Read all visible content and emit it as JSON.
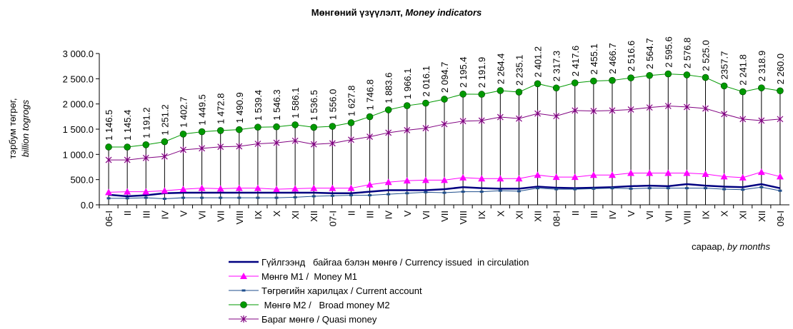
{
  "chart_data": {
    "type": "line",
    "title": "Мөнгөний үзүүлэлт,",
    "title_en": "Money indicators",
    "y_label": "тэрбум төгрөг,",
    "y_label_en": "billion togrogs",
    "x_label": "сараар,",
    "x_label_en": "by months",
    "categories": [
      "06-I",
      "II",
      "III",
      "IV",
      "V",
      "VI",
      "VII",
      "VIII",
      "IX",
      "X",
      "XI",
      "XII",
      "07-I",
      "II",
      "III",
      "IV",
      "V",
      "VI",
      "VII",
      "VIII",
      "IX",
      "X",
      "XI",
      "XII",
      "08-I",
      "II",
      "III",
      "IV",
      "V",
      "VI",
      "VII",
      "VIII",
      "IX",
      "X",
      "XI",
      "XII",
      "09-I"
    ],
    "ylim": [
      0,
      3000
    ],
    "yticks": [
      {
        "value": 0,
        "label": "0.0"
      },
      {
        "value": 500,
        "label": "500.0"
      },
      {
        "value": 1000,
        "label": "1 000.0"
      },
      {
        "value": 1500,
        "label": "1 500.0"
      },
      {
        "value": 2000,
        "label": "2 000.0"
      },
      {
        "value": 2500,
        "label": "2 500.0"
      },
      {
        "value": 3000,
        "label": "3 000.0"
      }
    ],
    "drop_lines": true,
    "series": [
      {
        "name": "Гүйлгээнд   байгаа бэлэн мөнгө / Currency issued  in circulation",
        "color": "#000080",
        "marker": "none",
        "width": 2.5,
        "values": [
          200,
          170,
          190,
          230,
          240,
          240,
          240,
          240,
          240,
          240,
          240,
          240,
          230,
          230,
          260,
          290,
          290,
          290,
          310,
          350,
          330,
          320,
          320,
          360,
          340,
          330,
          340,
          350,
          370,
          380,
          370,
          410,
          380,
          360,
          350,
          410,
          330
        ]
      },
      {
        "name": "Мөнгө М1 /  Money M1",
        "color": "#ff00ff",
        "marker": "triangle",
        "width": 1,
        "values": [
          250,
          260,
          260,
          280,
          310,
          330,
          320,
          330,
          330,
          310,
          320,
          330,
          330,
          330,
          400,
          450,
          480,
          490,
          490,
          540,
          520,
          520,
          520,
          590,
          550,
          550,
          590,
          590,
          630,
          630,
          630,
          630,
          610,
          560,
          540,
          650,
          560
        ]
      },
      {
        "name": "Төгрөгийн харилцах / Current account",
        "color": "#1f4e8c",
        "marker": "square",
        "width": 1,
        "values": [
          130,
          130,
          140,
          120,
          140,
          140,
          140,
          140,
          140,
          140,
          150,
          170,
          180,
          190,
          190,
          210,
          230,
          250,
          240,
          260,
          260,
          280,
          270,
          330,
          310,
          310,
          320,
          330,
          320,
          330,
          330,
          330,
          330,
          310,
          300,
          350,
          280
        ]
      },
      {
        "name": " Мөнгө М2 /   Broad money M2",
        "color": "#009900",
        "marker": "circle",
        "width": 1,
        "labels": true,
        "values": [
          1146.5,
          1145.4,
          1191.2,
          1251.2,
          1402.7,
          1449.5,
          1472.8,
          1490.9,
          1539.4,
          1546.3,
          1586.1,
          1536.5,
          1556.0,
          1627.8,
          1746.8,
          1883.6,
          1966.1,
          2016.1,
          2094.7,
          2195.4,
          2191.9,
          2264.4,
          2235.1,
          2401.2,
          2317.3,
          2417.6,
          2455.1,
          2466.7,
          2516.6,
          2564.7,
          2595.6,
          2576.8,
          2525.0,
          2357.7,
          2241.8,
          2318.9,
          2260.0
        ],
        "value_labels": [
          "1 146.5",
          "1 145.4",
          "1 191.2",
          "1 251.2",
          "1 402.7",
          "1 449.5",
          "1 472.8",
          "1 490.9",
          "1 539.4",
          "1 546.3",
          "1 586.1",
          "1 536.5",
          "1 556.0",
          "1 627.8",
          "1 746.8",
          "1 883.6",
          "1 966.1",
          "2 016.1",
          "2 094.7",
          "2 195.4",
          "2 191.9",
          "2 264.4",
          "2 235.1",
          "2 401.2",
          "2 317.3",
          "2 417.6",
          "2 455.1",
          "2 466.7",
          "2 516.6",
          "2 564.7",
          "2 595.6",
          "2 576.8",
          "2 525.0",
          "2357.7",
          "2 241.8",
          "2 318.9",
          "2 260.0"
        ]
      },
      {
        "name": "Бараг мөнгө / Quasi money",
        "color": "#800080",
        "marker": "star",
        "width": 1,
        "values": [
          890,
          890,
          930,
          960,
          1090,
          1120,
          1150,
          1160,
          1210,
          1230,
          1270,
          1200,
          1220,
          1290,
          1350,
          1430,
          1480,
          1520,
          1600,
          1660,
          1670,
          1740,
          1710,
          1810,
          1760,
          1870,
          1860,
          1870,
          1890,
          1930,
          1960,
          1940,
          1910,
          1800,
          1700,
          1670,
          1700
        ]
      }
    ]
  }
}
